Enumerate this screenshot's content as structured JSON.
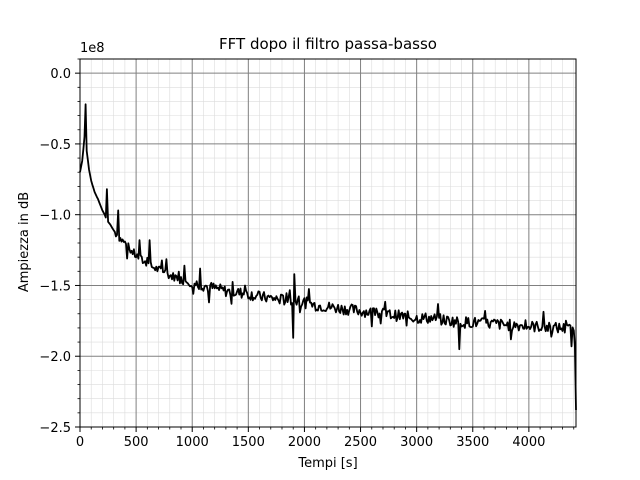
{
  "chart_data": {
    "type": "line",
    "title": "FFT dopo il filtro passa-basso",
    "xlabel": "Tempi [s]",
    "ylabel": "Ampiezza in dB",
    "offset_text": "1e8",
    "y_scale_factor": 100000000,
    "xlim": [
      0,
      4420
    ],
    "ylim": [
      -2.5,
      0.1
    ],
    "x_ticks": [
      0,
      500,
      1000,
      1500,
      2000,
      2500,
      3000,
      3500,
      4000
    ],
    "x_tick_labels": [
      "0",
      "500",
      "1000",
      "1500",
      "2000",
      "2500",
      "3000",
      "3500",
      "4000"
    ],
    "y_ticks": [
      0.0,
      -0.5,
      -1.0,
      -1.5,
      -2.0,
      -2.5
    ],
    "y_tick_labels": [
      "0.0",
      "−0.5",
      "−1.0",
      "−1.5",
      "−2.0",
      "−2.5"
    ],
    "grid": {
      "major": true,
      "minor": true
    },
    "line_color": "#000000",
    "grid_major_color": "#808080",
    "grid_minor_color": "#dcdcdc",
    "series": [
      {
        "values_note": "y values in units of 1e8",
        "x": [
          0,
          20,
          40,
          50,
          60,
          80,
          100,
          130,
          160,
          180,
          200,
          220,
          240,
          270,
          300,
          330,
          360,
          400,
          450,
          500,
          550,
          600,
          650,
          700,
          750,
          800,
          850,
          900,
          950,
          1000,
          1100,
          1200,
          1300,
          1400,
          1500,
          1600,
          1700,
          1800,
          1900,
          2000,
          2100,
          2200,
          2300,
          2400,
          2500,
          2600,
          2700,
          2800,
          2900,
          3000,
          3100,
          3200,
          3300,
          3400,
          3500,
          3600,
          3700,
          3800,
          3900,
          4000,
          4100,
          4200,
          4300,
          4400,
          4420
        ],
        "y": [
          -0.7,
          -0.62,
          -0.45,
          -0.22,
          -0.55,
          -0.68,
          -0.76,
          -0.84,
          -0.89,
          -0.93,
          -0.97,
          -1.0,
          -1.04,
          -1.07,
          -1.11,
          -1.14,
          -1.17,
          -1.2,
          -1.25,
          -1.29,
          -1.32,
          -1.35,
          -1.37,
          -1.39,
          -1.4,
          -1.43,
          -1.44,
          -1.46,
          -1.47,
          -1.48,
          -1.5,
          -1.52,
          -1.54,
          -1.55,
          -1.56,
          -1.58,
          -1.59,
          -1.6,
          -1.61,
          -1.62,
          -1.64,
          -1.65,
          -1.66,
          -1.67,
          -1.68,
          -1.69,
          -1.7,
          -1.71,
          -1.72,
          -1.73,
          -1.73,
          -1.74,
          -1.75,
          -1.76,
          -1.76,
          -1.77,
          -1.77,
          -1.78,
          -1.78,
          -1.79,
          -1.79,
          -1.8,
          -1.8,
          -1.82,
          -2.38
        ]
      }
    ],
    "spikes": [
      {
        "x": 50,
        "y": -0.22
      },
      {
        "x": 240,
        "y": -0.82
      },
      {
        "x": 340,
        "y": -0.97
      },
      {
        "x": 530,
        "y": -1.18
      },
      {
        "x": 620,
        "y": -1.18
      },
      {
        "x": 930,
        "y": -1.36
      },
      {
        "x": 1070,
        "y": -1.38
      },
      {
        "x": 1150,
        "y": -1.62
      },
      {
        "x": 1900,
        "y": -1.87
      },
      {
        "x": 1910,
        "y": -1.42
      },
      {
        "x": 3380,
        "y": -1.95
      },
      {
        "x": 4380,
        "y": -1.93
      }
    ]
  }
}
